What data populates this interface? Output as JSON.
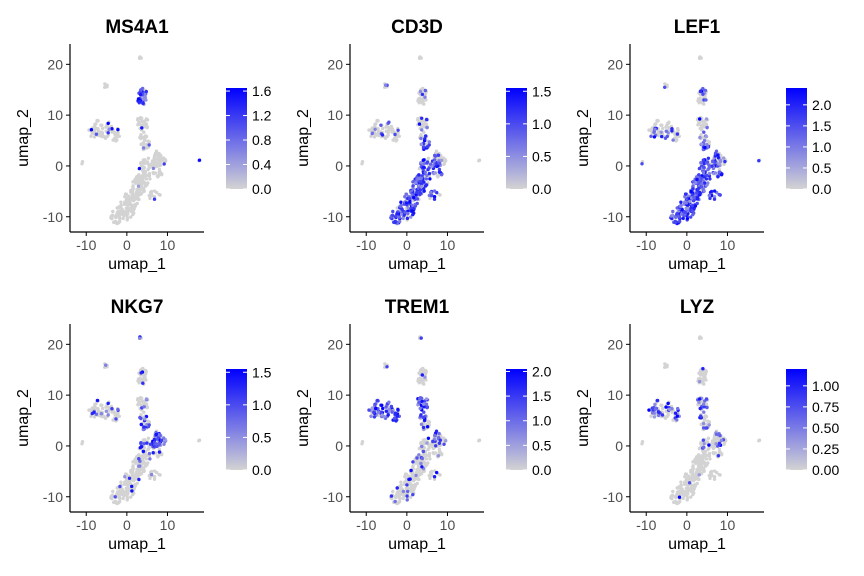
{
  "colors": {
    "low": "#D3D3D3",
    "high": "#0000FF",
    "axis": "#000000"
  },
  "chart_data": [
    {
      "type": "scatter",
      "title": "MS4A1",
      "xlabel": "umap_1",
      "ylabel": "umap_2",
      "xlim": [
        -14,
        19
      ],
      "ylim": [
        -13,
        24
      ],
      "xticks": [
        -10,
        0,
        10
      ],
      "yticks": [
        -10,
        0,
        10,
        20
      ],
      "legend": {
        "placement": "right",
        "ticks": [
          0.0,
          0.4,
          0.8,
          1.2,
          1.6
        ],
        "tick_labels": [
          "0.0",
          "0.4",
          "0.8",
          "1.2",
          "1.6"
        ],
        "max": 1.65
      },
      "expression": {
        "b_cluster": 0.95,
        "tcells_lower": 0.02,
        "tcells_upper": 0.05,
        "nk_cluster": 0.05,
        "mono_cluster": 0.08,
        "top_cluster": 0.05,
        "islands": 0.03
      }
    },
    {
      "type": "scatter",
      "title": "CD3D",
      "xlabel": "umap_1",
      "ylabel": "umap_2",
      "xlim": [
        -14,
        19
      ],
      "ylim": [
        -13,
        24
      ],
      "xticks": [
        -10,
        0,
        10
      ],
      "yticks": [
        -10,
        0,
        10,
        20
      ],
      "legend": {
        "placement": "right",
        "ticks": [
          0.0,
          0.5,
          1.0,
          1.5
        ],
        "tick_labels": [
          "0.0",
          "0.5",
          "1.0",
          "1.5"
        ],
        "max": 1.55
      },
      "expression": {
        "b_cluster": 0.05,
        "tcells_lower": 0.75,
        "tcells_upper": 0.55,
        "nk_cluster": 0.35,
        "mono_cluster": 0.1,
        "top_cluster": 0.2,
        "islands": 0.15
      }
    },
    {
      "type": "scatter",
      "title": "LEF1",
      "xlabel": "umap_1",
      "ylabel": "umap_2",
      "xlim": [
        -14,
        19
      ],
      "ylim": [
        -13,
        24
      ],
      "xticks": [
        -10,
        0,
        10
      ],
      "yticks": [
        -10,
        0,
        10,
        20
      ],
      "legend": {
        "placement": "right",
        "ticks": [
          0.0,
          0.5,
          1.0,
          1.5,
          2.0
        ],
        "tick_labels": [
          "0.0",
          "0.5",
          "1.0",
          "1.5",
          "2.0"
        ],
        "max": 2.4
      },
      "expression": {
        "b_cluster": 0.2,
        "tcells_lower": 0.97,
        "tcells_upper": 0.85,
        "nk_cluster": 0.3,
        "mono_cluster": 0.2,
        "top_cluster": 0.35,
        "islands": 0.3
      }
    },
    {
      "type": "scatter",
      "title": "NKG7",
      "xlabel": "umap_1",
      "ylabel": "umap_2",
      "xlim": [
        -14,
        19
      ],
      "ylim": [
        -13,
        24
      ],
      "xticks": [
        -10,
        0,
        10
      ],
      "yticks": [
        -10,
        0,
        10,
        20
      ],
      "legend": {
        "placement": "right",
        "ticks": [
          0.0,
          0.5,
          1.0,
          1.5
        ],
        "tick_labels": [
          "0.0",
          "0.5",
          "1.0",
          "1.5"
        ],
        "max": 1.55
      },
      "expression": {
        "b_cluster": 0.06,
        "tcells_lower": 0.1,
        "tcells_upper": 0.35,
        "nk_cluster": 0.85,
        "mono_cluster": 0.12,
        "top_cluster": 0.2,
        "islands": 0.1
      }
    },
    {
      "type": "scatter",
      "title": "TREM1",
      "xlabel": "umap_1",
      "ylabel": "umap_2",
      "xlim": [
        -14,
        19
      ],
      "ylim": [
        -13,
        24
      ],
      "xticks": [
        -10,
        0,
        10
      ],
      "yticks": [
        -10,
        0,
        10,
        20
      ],
      "legend": {
        "placement": "right",
        "ticks": [
          0.0,
          0.5,
          1.0,
          1.5,
          2.0
        ],
        "tick_labels": [
          "0.0",
          "0.5",
          "1.0",
          "1.5",
          "2.0"
        ],
        "max": 2.05
      },
      "expression": {
        "b_cluster": 0.08,
        "tcells_lower": 0.12,
        "tcells_upper": 0.2,
        "nk_cluster": 0.15,
        "mono_cluster": 0.9,
        "top_cluster": 0.2,
        "islands": 0.1
      }
    },
    {
      "type": "scatter",
      "title": "LYZ",
      "xlabel": "umap_1",
      "ylabel": "umap_2",
      "xlim": [
        -14,
        19
      ],
      "ylim": [
        -13,
        24
      ],
      "xticks": [
        -10,
        0,
        10
      ],
      "yticks": [
        -10,
        0,
        10,
        20
      ],
      "legend": {
        "placement": "right",
        "ticks": [
          0.0,
          0.25,
          0.5,
          0.75,
          1.0
        ],
        "tick_labels": [
          "0.00",
          "0.25",
          "0.50",
          "0.75",
          "1.00"
        ],
        "max": 1.2
      },
      "expression": {
        "b_cluster": 0.05,
        "tcells_lower": 0.03,
        "tcells_upper": 0.1,
        "nk_cluster": 0.15,
        "mono_cluster": 0.4,
        "top_cluster": 0.2,
        "islands": 0.12
      }
    }
  ]
}
